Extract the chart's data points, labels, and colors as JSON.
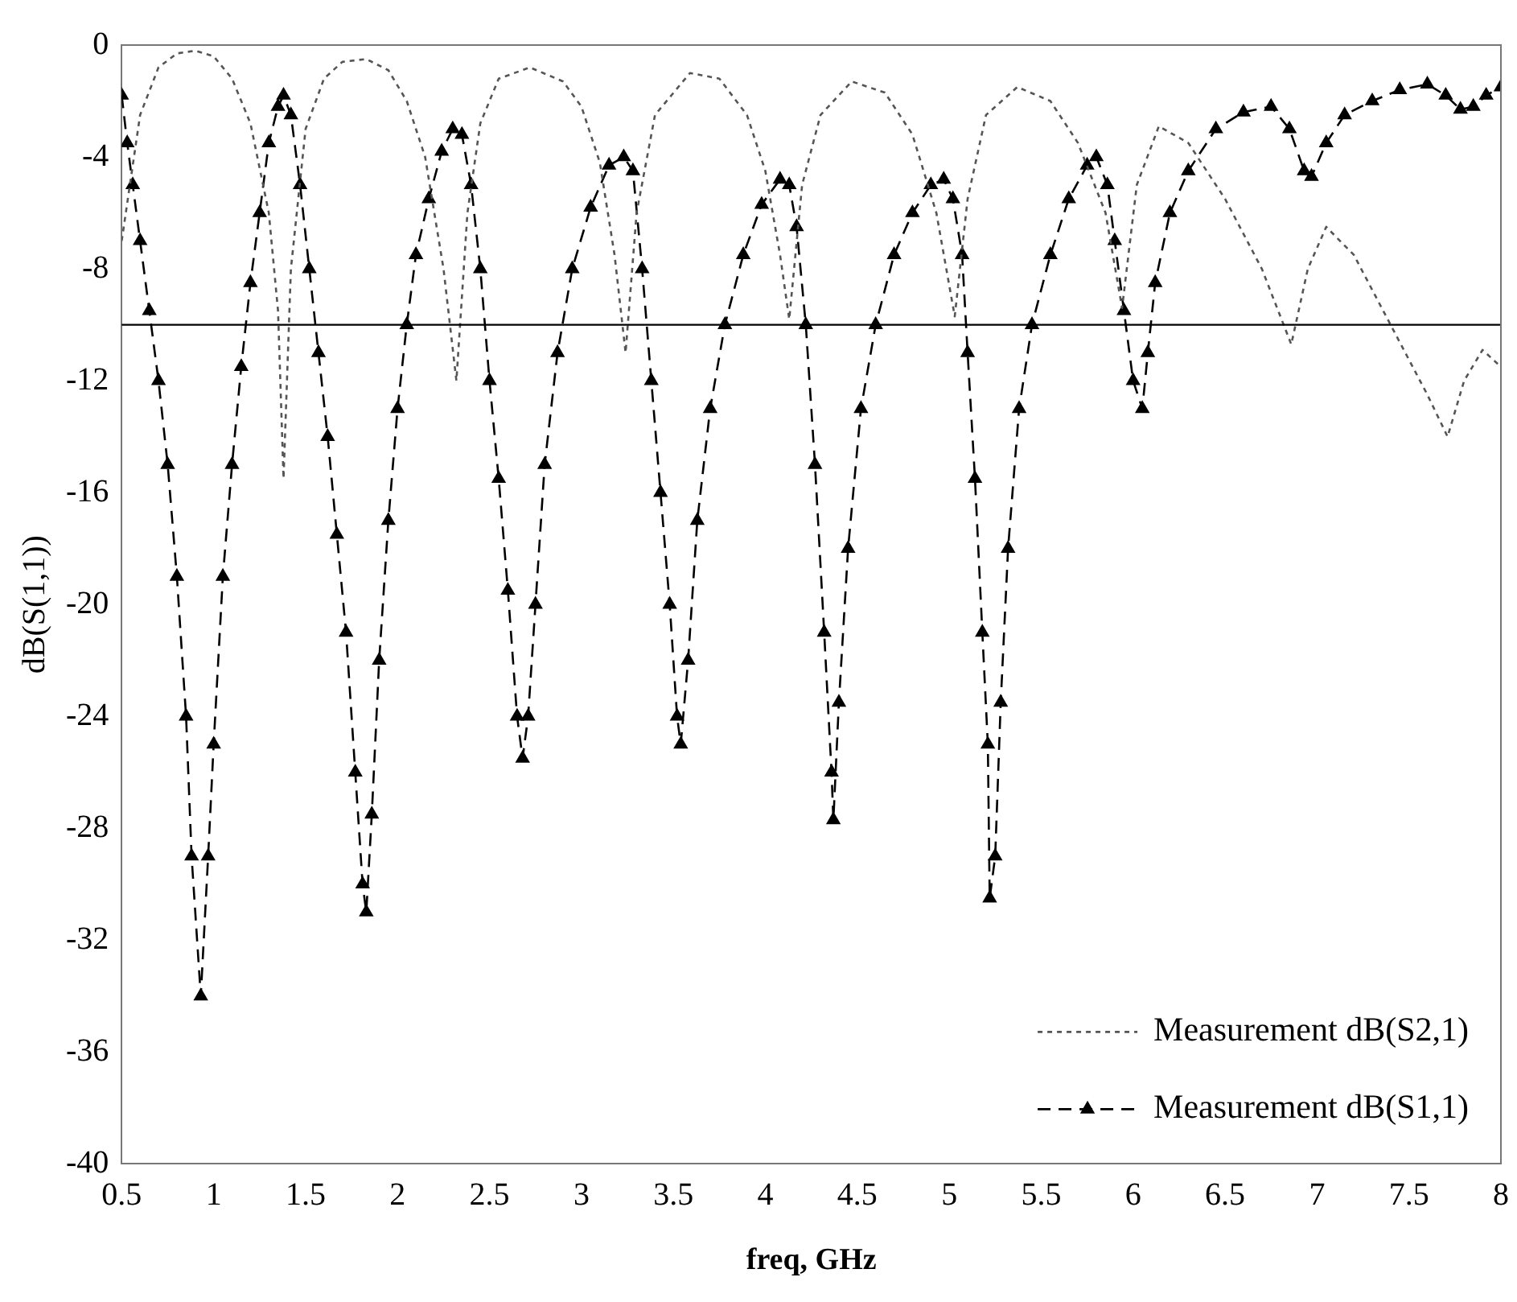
{
  "chart_data": {
    "type": "line",
    "xlabel": "freq, GHz",
    "ylabel": "dB(S(1,1))",
    "xlim": [
      0.5,
      8
    ],
    "xticks": [
      0.5,
      1,
      1.5,
      2,
      2.5,
      3,
      3.5,
      4,
      4.5,
      5,
      5.5,
      6,
      6.5,
      7,
      7.5,
      8
    ],
    "ylim": [
      -40,
      0
    ],
    "yticks": [
      0,
      -4,
      -8,
      -12,
      -16,
      -20,
      -24,
      -28,
      -32,
      -36,
      -40
    ],
    "grid": false,
    "legend": "bottom right",
    "ref_lines": [
      {
        "axis": "y",
        "value": -10,
        "color": "#000000"
      }
    ],
    "series": [
      {
        "name": "Measurement dB(S2,1)",
        "color": "#555555",
        "marker": "none",
        "line_style": "dotted",
        "x": [
          0.5,
          0.6,
          0.7,
          0.8,
          0.9,
          1.0,
          1.1,
          1.2,
          1.3,
          1.35,
          1.38,
          1.42,
          1.5,
          1.6,
          1.7,
          1.83,
          1.95,
          2.05,
          2.15,
          2.25,
          2.32,
          2.38,
          2.45,
          2.55,
          2.72,
          2.9,
          3.0,
          3.1,
          3.18,
          3.24,
          3.3,
          3.4,
          3.59,
          3.75,
          3.9,
          4.0,
          4.08,
          4.13,
          4.2,
          4.3,
          4.47,
          4.65,
          4.8,
          4.93,
          5.03,
          5.1,
          5.2,
          5.37,
          5.55,
          5.7,
          5.85,
          5.94,
          6.02,
          6.14,
          6.3,
          6.5,
          6.7,
          6.86,
          6.95,
          7.05,
          7.2,
          7.4,
          7.6,
          7.71,
          7.8,
          7.9,
          8.0
        ],
        "values": [
          -7,
          -2.5,
          -0.8,
          -0.3,
          -0.2,
          -0.4,
          -1.2,
          -2.8,
          -6,
          -9.5,
          -15.5,
          -8,
          -3,
          -1.2,
          -0.6,
          -0.5,
          -0.9,
          -2,
          -4,
          -8,
          -12,
          -6,
          -2.8,
          -1.2,
          -0.8,
          -1.3,
          -2.2,
          -4.2,
          -7.5,
          -11,
          -6,
          -2.5,
          -1,
          -1.2,
          -2.5,
          -4.5,
          -7.5,
          -9.8,
          -5,
          -2.5,
          -1.3,
          -1.7,
          -3.2,
          -6,
          -9.7,
          -5.5,
          -2.5,
          -1.5,
          -2,
          -3.5,
          -6,
          -9.4,
          -5,
          -2.9,
          -3.5,
          -5.5,
          -8,
          -10.7,
          -8,
          -6.5,
          -7.5,
          -10,
          -12.5,
          -14,
          -12,
          -10.9,
          -11.5
        ]
      },
      {
        "name": "Measurement dB(S1,1)",
        "color": "#000000",
        "marker": "triangle",
        "line_style": "dashed",
        "x": [
          0.5,
          0.53,
          0.56,
          0.6,
          0.65,
          0.7,
          0.75,
          0.8,
          0.85,
          0.88,
          0.93,
          0.97,
          1.0,
          1.05,
          1.1,
          1.15,
          1.2,
          1.25,
          1.3,
          1.35,
          1.38,
          1.42,
          1.47,
          1.52,
          1.57,
          1.62,
          1.67,
          1.72,
          1.77,
          1.81,
          1.83,
          1.86,
          1.9,
          1.95,
          2.0,
          2.05,
          2.1,
          2.17,
          2.24,
          2.3,
          2.35,
          2.4,
          2.45,
          2.5,
          2.55,
          2.6,
          2.65,
          2.68,
          2.71,
          2.75,
          2.8,
          2.87,
          2.95,
          3.05,
          3.15,
          3.23,
          3.28,
          3.33,
          3.38,
          3.43,
          3.48,
          3.52,
          3.54,
          3.58,
          3.63,
          3.7,
          3.78,
          3.88,
          3.98,
          4.08,
          4.13,
          4.17,
          4.22,
          4.27,
          4.32,
          4.36,
          4.37,
          4.4,
          4.45,
          4.52,
          4.6,
          4.7,
          4.8,
          4.9,
          4.97,
          5.02,
          5.07,
          5.1,
          5.14,
          5.18,
          5.21,
          5.22,
          5.25,
          5.28,
          5.32,
          5.38,
          5.45,
          5.55,
          5.65,
          5.75,
          5.8,
          5.86,
          5.9,
          5.95,
          6.0,
          6.05,
          6.08,
          6.12,
          6.2,
          6.3,
          6.45,
          6.6,
          6.75,
          6.85,
          6.93,
          6.97,
          7.05,
          7.15,
          7.3,
          7.45,
          7.6,
          7.7,
          7.78,
          7.85,
          7.92,
          8.0
        ],
        "values": [
          -1.8,
          -3.5,
          -5,
          -7,
          -9.5,
          -12,
          -15,
          -19,
          -24,
          -29,
          -34,
          -29,
          -25,
          -19,
          -15,
          -11.5,
          -8.5,
          -6,
          -3.5,
          -2.2,
          -1.8,
          -2.5,
          -5,
          -8,
          -11,
          -14,
          -17.5,
          -21,
          -26,
          -30,
          -31,
          -27.5,
          -22,
          -17,
          -13,
          -10,
          -7.5,
          -5.5,
          -3.8,
          -3,
          -3.2,
          -5,
          -8,
          -12,
          -15.5,
          -19.5,
          -24,
          -25.5,
          -24,
          -20,
          -15,
          -11,
          -8,
          -5.8,
          -4.3,
          -4,
          -4.5,
          -8,
          -12,
          -16,
          -20,
          -24,
          -25,
          -22,
          -17,
          -13,
          -10,
          -7.5,
          -5.7,
          -4.8,
          -5,
          -6.5,
          -10,
          -15,
          -21,
          -26,
          -27.7,
          -23.5,
          -18,
          -13,
          -10,
          -7.5,
          -6,
          -5,
          -4.8,
          -5.5,
          -7.5,
          -11,
          -15.5,
          -21,
          -25,
          -30.5,
          -29,
          -23.5,
          -18,
          -13,
          -10,
          -7.5,
          -5.5,
          -4.3,
          -4,
          -5,
          -7,
          -9.5,
          -12,
          -13,
          -11,
          -8.5,
          -6,
          -4.5,
          -3,
          -2.4,
          -2.2,
          -3,
          -4.5,
          -4.7,
          -3.5,
          -2.5,
          -2,
          -1.6,
          -1.4,
          -1.8,
          -2.3,
          -2.2,
          -1.8,
          -1.5
        ]
      }
    ]
  }
}
